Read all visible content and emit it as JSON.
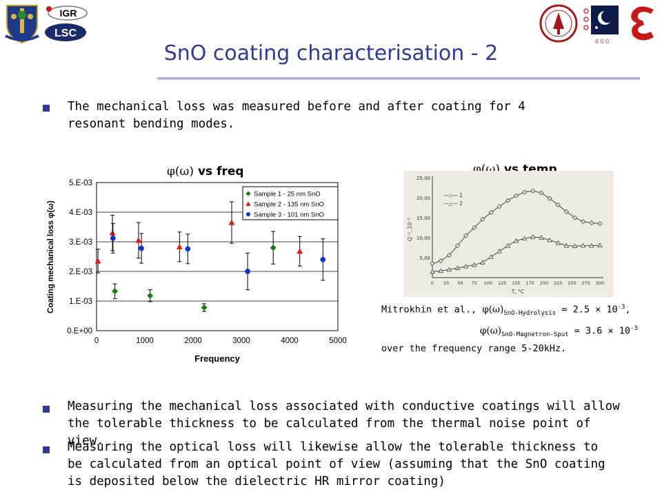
{
  "title": "SnO coating characterisation - 2",
  "logos": {
    "igr": "IGR",
    "lsc": "LSC",
    "logo_600": "6 0 0"
  },
  "bullets": [
    "The mechanical loss was measured before and after coating for 4 resonant bending modes.",
    "Measuring the mechanical loss associated with conductive coatings will allow the tolerable thickness to be calculated from the thermal noise point of view.",
    "Measuring the optical loss will likewise allow the tolerable thickness to be calculated from an optical point of view (assuming that the SnO coating is deposited below the dielectric HR mirror coating)"
  ],
  "chart1": {
    "heading": "vs freq",
    "heading_symbol": "φ(ω)",
    "xlabel": "Frequency",
    "ylabel": "Coating mechanical loss φ(ω)"
  },
  "chart2": {
    "heading": "vs temp",
    "heading_symbol": "φ(ω)",
    "xlabel": "T, °C",
    "ylabel": "Q⁻¹, 10⁻⁵",
    "legend": [
      "—◇— 1",
      "—△— 2"
    ],
    "yticks": [
      "25,00",
      "20,00",
      "15,00",
      "10,00",
      "5,00"
    ],
    "xticks": [
      "0",
      "25",
      "50",
      "75",
      "100",
      "125",
      "150",
      "175",
      "200",
      "225",
      "250",
      "275",
      "300"
    ]
  },
  "annotation": {
    "line1_prefix": "Mitrokhin et al.,",
    "symbol": "φ(ω)",
    "sub1": "SnO-Hydrolysis",
    "line1_value": "= 2.5 × 10",
    "exp": "-3",
    "line1_end": ",",
    "sub2": "SnO-Magnetron-Sput",
    "line2_value": "= 3.6 × 10",
    "line3": "over the frequency range 5-20kHz."
  },
  "chart_data": [
    {
      "type": "scatter",
      "xlabel": "Frequency",
      "ylabel": "Coating mechanical loss φ(ω)",
      "xlim": [
        0,
        5000
      ],
      "ylim": [
        0,
        0.005
      ],
      "xticks": [
        "0",
        "1000",
        "2000",
        "3000",
        "4000",
        "5000"
      ],
      "yticks": [
        "0.E+00",
        "1.E-03",
        "2.E-03",
        "3.E-03",
        "4.E-03",
        "5.E-03"
      ],
      "legend_position": "top-right",
      "series": [
        {
          "name": "Sample 1 - 25 nm SnO",
          "color": "#1a7a1a",
          "marker": "diamond",
          "points": [
            {
              "x": 380,
              "y": 0.00133,
              "err": 0.00025
            },
            {
              "x": 1110,
              "y": 0.00118,
              "err": 0.0002
            },
            {
              "x": 2230,
              "y": 0.00078,
              "err": 0.00013
            },
            {
              "x": 3660,
              "y": 0.0028,
              "err": 0.00055
            }
          ]
        },
        {
          "name": "Sample 2 - 135 nm SnO",
          "color": "#e01818",
          "marker": "triangle",
          "points": [
            {
              "x": 30,
              "y": 0.00235,
              "err": 0.0004
            },
            {
              "x": 330,
              "y": 0.0033,
              "err": 0.0006
            },
            {
              "x": 870,
              "y": 0.00305,
              "err": 0.0006
            },
            {
              "x": 1720,
              "y": 0.00283,
              "err": 0.0005
            },
            {
              "x": 2800,
              "y": 0.00365,
              "err": 0.0007
            },
            {
              "x": 4210,
              "y": 0.00268,
              "err": 0.0005
            }
          ]
        },
        {
          "name": "Sample 3 - 101 nm SnO",
          "color": "#1030d0",
          "marker": "circle",
          "points": [
            {
              "x": 340,
              "y": 0.00312,
              "err": 0.0005
            },
            {
              "x": 930,
              "y": 0.00278,
              "err": 0.0005
            },
            {
              "x": 1890,
              "y": 0.00276,
              "err": 0.0005
            },
            {
              "x": 3130,
              "y": 0.002,
              "err": 0.00062
            },
            {
              "x": 4690,
              "y": 0.0024,
              "err": 0.0007
            }
          ]
        }
      ]
    },
    {
      "type": "line",
      "xlabel": "T, °C",
      "ylabel": "Q⁻¹, 10⁻⁵",
      "xlim": [
        0,
        300
      ],
      "ylim": [
        0,
        25
      ],
      "series": [
        {
          "name": "1",
          "marker": "diamond",
          "x": [
            0,
            15,
            30,
            45,
            60,
            75,
            90,
            105,
            120,
            135,
            150,
            165,
            180,
            195,
            210,
            225,
            240,
            255,
            270,
            285,
            300
          ],
          "y": [
            3.5,
            4.2,
            5.6,
            8.0,
            10.5,
            12.5,
            14.6,
            16.3,
            17.8,
            19.3,
            20.5,
            21.4,
            21.7,
            21.2,
            19.8,
            18.2,
            16.5,
            15.0,
            14.0,
            13.7,
            13.5
          ]
        },
        {
          "name": "2",
          "marker": "triangle",
          "x": [
            0,
            15,
            30,
            45,
            60,
            75,
            90,
            105,
            120,
            135,
            150,
            165,
            180,
            195,
            210,
            225,
            240,
            255,
            270,
            285,
            300
          ],
          "y": [
            1.5,
            1.7,
            2.0,
            2.4,
            2.8,
            3.2,
            3.8,
            5.2,
            6.6,
            8.0,
            9.2,
            9.8,
            10.2,
            10.0,
            9.4,
            8.7,
            8.0,
            7.9,
            8.0,
            8.0,
            8.1
          ]
        }
      ]
    }
  ]
}
